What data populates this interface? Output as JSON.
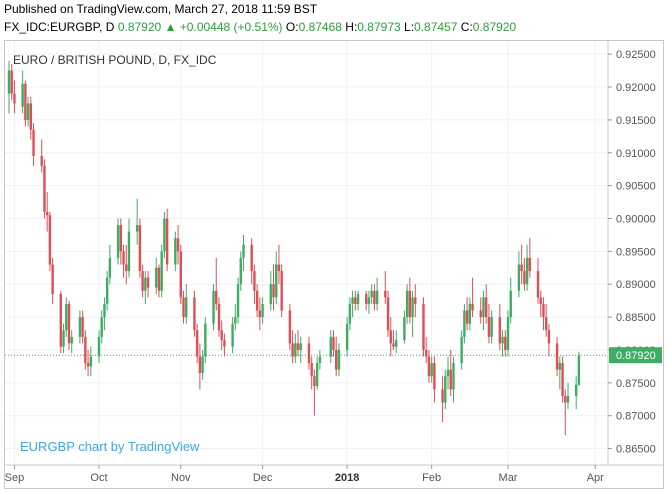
{
  "published": "Published on TradingView.com, March 27, 2018 11:59 BST",
  "header": {
    "symbol": "FX_IDC:EURGBP, D",
    "last": "0.87920",
    "arrow": "▲",
    "change": "+0.00448 (+0.51%)",
    "o_label": "O:",
    "o_value": "0.87468",
    "h_label": "H:",
    "h_value": "0.87973",
    "l_label": "L:",
    "l_value": "0.87457",
    "c_label": "C:",
    "c_value": "0.87920"
  },
  "watermark": "EURGBP chart by TradingView",
  "colors": {
    "up": "#3ead63",
    "down": "#e04e55",
    "price_label": "#3ead63",
    "grid": "#eef1f6"
  },
  "chart_data": {
    "type": "candlestick",
    "title": "EURO / BRITISH POUND, D, FX_IDC",
    "xlabel": "",
    "ylabel": "",
    "ylim": [
      0.8625,
      0.927
    ],
    "grid": true,
    "last_price": "0.87920",
    "y_ticks": [
      "0.92500",
      "0.92000",
      "0.91500",
      "0.91000",
      "0.90500",
      "0.90000",
      "0.89500",
      "0.89000",
      "0.88500",
      "0.88000",
      "0.87500",
      "0.87000",
      "0.86500"
    ],
    "x_ticks": [
      {
        "label": "Sep",
        "date": "2017-09-01"
      },
      {
        "label": "Oct",
        "date": "2017-10-02"
      },
      {
        "label": "Nov",
        "date": "2017-11-01"
      },
      {
        "label": "Dec",
        "date": "2017-12-01"
      },
      {
        "label": "2018",
        "date": "2018-01-01",
        "bold": true
      },
      {
        "label": "Feb",
        "date": "2018-02-01"
      },
      {
        "label": "Mar",
        "date": "2018-03-01"
      },
      {
        "label": "Apr",
        "date": "2018-04-02"
      }
    ],
    "candles": [
      {
        "d": "2017-08-30",
        "o": 0.919,
        "h": 0.924,
        "l": 0.916,
        "c": 0.9225
      },
      {
        "d": "2017-08-31",
        "o": 0.9225,
        "h": 0.9235,
        "l": 0.918,
        "c": 0.919
      },
      {
        "d": "2017-09-01",
        "o": 0.919,
        "h": 0.921,
        "l": 0.916,
        "c": 0.9175
      },
      {
        "d": "2017-09-04",
        "o": 0.917,
        "h": 0.9225,
        "l": 0.916,
        "c": 0.9205
      },
      {
        "d": "2017-09-05",
        "o": 0.9205,
        "h": 0.921,
        "l": 0.914,
        "c": 0.915
      },
      {
        "d": "2017-09-06",
        "o": 0.915,
        "h": 0.9185,
        "l": 0.914,
        "c": 0.9175
      },
      {
        "d": "2017-09-07",
        "o": 0.9175,
        "h": 0.9185,
        "l": 0.912,
        "c": 0.9135
      },
      {
        "d": "2017-09-08",
        "o": 0.9135,
        "h": 0.9145,
        "l": 0.908,
        "c": 0.9095
      },
      {
        "d": "2017-09-11",
        "o": 0.9095,
        "h": 0.912,
        "l": 0.907,
        "c": 0.908
      },
      {
        "d": "2017-09-12",
        "o": 0.908,
        "h": 0.909,
        "l": 0.9,
        "c": 0.901
      },
      {
        "d": "2017-09-13",
        "o": 0.901,
        "h": 0.904,
        "l": 0.898,
        "c": 0.9005
      },
      {
        "d": "2017-09-14",
        "o": 0.9005,
        "h": 0.901,
        "l": 0.892,
        "c": 0.893
      },
      {
        "d": "2017-09-15",
        "o": 0.893,
        "h": 0.894,
        "l": 0.887,
        "c": 0.8885
      },
      {
        "d": "2017-09-18",
        "o": 0.8885,
        "h": 0.889,
        "l": 0.8795,
        "c": 0.8805
      },
      {
        "d": "2017-09-19",
        "o": 0.8805,
        "h": 0.884,
        "l": 0.8795,
        "c": 0.883
      },
      {
        "d": "2017-09-20",
        "o": 0.883,
        "h": 0.888,
        "l": 0.882,
        "c": 0.887
      },
      {
        "d": "2017-09-21",
        "o": 0.887,
        "h": 0.8875,
        "l": 0.88,
        "c": 0.881
      },
      {
        "d": "2017-09-22",
        "o": 0.881,
        "h": 0.883,
        "l": 0.8795,
        "c": 0.882
      },
      {
        "d": "2017-09-25",
        "o": 0.882,
        "h": 0.886,
        "l": 0.881,
        "c": 0.885
      },
      {
        "d": "2017-09-26",
        "o": 0.885,
        "h": 0.886,
        "l": 0.881,
        "c": 0.882
      },
      {
        "d": "2017-09-27",
        "o": 0.882,
        "h": 0.883,
        "l": 0.877,
        "c": 0.878
      },
      {
        "d": "2017-09-28",
        "o": 0.878,
        "h": 0.88,
        "l": 0.876,
        "c": 0.8775
      },
      {
        "d": "2017-09-29",
        "o": 0.8775,
        "h": 0.8805,
        "l": 0.876,
        "c": 0.879
      },
      {
        "d": "2017-10-02",
        "o": 0.879,
        "h": 0.883,
        "l": 0.878,
        "c": 0.882
      },
      {
        "d": "2017-10-03",
        "o": 0.882,
        "h": 0.886,
        "l": 0.881,
        "c": 0.885
      },
      {
        "d": "2017-10-04",
        "o": 0.885,
        "h": 0.888,
        "l": 0.883,
        "c": 0.887
      },
      {
        "d": "2017-10-05",
        "o": 0.887,
        "h": 0.892,
        "l": 0.886,
        "c": 0.891
      },
      {
        "d": "2017-10-06",
        "o": 0.891,
        "h": 0.896,
        "l": 0.89,
        "c": 0.894
      },
      {
        "d": "2017-10-09",
        "o": 0.894,
        "h": 0.9,
        "l": 0.893,
        "c": 0.899
      },
      {
        "d": "2017-10-10",
        "o": 0.899,
        "h": 0.9,
        "l": 0.893,
        "c": 0.895
      },
      {
        "d": "2017-10-11",
        "o": 0.895,
        "h": 0.896,
        "l": 0.891,
        "c": 0.893
      },
      {
        "d": "2017-10-12",
        "o": 0.893,
        "h": 0.896,
        "l": 0.89,
        "c": 0.892
      },
      {
        "d": "2017-10-13",
        "o": 0.892,
        "h": 0.9,
        "l": 0.891,
        "c": 0.898
      },
      {
        "d": "2017-10-16",
        "o": 0.898,
        "h": 0.903,
        "l": 0.896,
        "c": 0.899
      },
      {
        "d": "2017-10-17",
        "o": 0.899,
        "h": 0.9,
        "l": 0.891,
        "c": 0.892
      },
      {
        "d": "2017-10-18",
        "o": 0.892,
        "h": 0.893,
        "l": 0.888,
        "c": 0.889
      },
      {
        "d": "2017-10-19",
        "o": 0.889,
        "h": 0.892,
        "l": 0.887,
        "c": 0.891
      },
      {
        "d": "2017-10-20",
        "o": 0.891,
        "h": 0.892,
        "l": 0.888,
        "c": 0.8895
      },
      {
        "d": "2017-10-23",
        "o": 0.8895,
        "h": 0.894,
        "l": 0.8885,
        "c": 0.8925
      },
      {
        "d": "2017-10-24",
        "o": 0.8925,
        "h": 0.893,
        "l": 0.888,
        "c": 0.889
      },
      {
        "d": "2017-10-25",
        "o": 0.889,
        "h": 0.896,
        "l": 0.888,
        "c": 0.895
      },
      {
        "d": "2017-10-26",
        "o": 0.895,
        "h": 0.901,
        "l": 0.894,
        "c": 0.9
      },
      {
        "d": "2017-10-27",
        "o": 0.9,
        "h": 0.9015,
        "l": 0.892,
        "c": 0.893
      },
      {
        "d": "2017-10-30",
        "o": 0.893,
        "h": 0.898,
        "l": 0.892,
        "c": 0.897
      },
      {
        "d": "2017-10-31",
        "o": 0.897,
        "h": 0.899,
        "l": 0.893,
        "c": 0.895
      },
      {
        "d": "2017-11-01",
        "o": 0.895,
        "h": 0.896,
        "l": 0.887,
        "c": 0.888
      },
      {
        "d": "2017-11-02",
        "o": 0.888,
        "h": 0.889,
        "l": 0.884,
        "c": 0.885
      },
      {
        "d": "2017-11-03",
        "o": 0.885,
        "h": 0.89,
        "l": 0.884,
        "c": 0.888
      },
      {
        "d": "2017-11-06",
        "o": 0.888,
        "h": 0.889,
        "l": 0.882,
        "c": 0.883
      },
      {
        "d": "2017-11-07",
        "o": 0.883,
        "h": 0.884,
        "l": 0.878,
        "c": 0.879
      },
      {
        "d": "2017-11-08",
        "o": 0.879,
        "h": 0.881,
        "l": 0.874,
        "c": 0.8765
      },
      {
        "d": "2017-11-09",
        "o": 0.8765,
        "h": 0.88,
        "l": 0.8755,
        "c": 0.879
      },
      {
        "d": "2017-11-10",
        "o": 0.879,
        "h": 0.885,
        "l": 0.878,
        "c": 0.884
      },
      {
        "d": "2017-11-13",
        "o": 0.884,
        "h": 0.89,
        "l": 0.883,
        "c": 0.889
      },
      {
        "d": "2017-11-14",
        "o": 0.889,
        "h": 0.894,
        "l": 0.886,
        "c": 0.887
      },
      {
        "d": "2017-11-15",
        "o": 0.887,
        "h": 0.888,
        "l": 0.882,
        "c": 0.883
      },
      {
        "d": "2017-11-16",
        "o": 0.883,
        "h": 0.8845,
        "l": 0.88,
        "c": 0.8815
      },
      {
        "d": "2017-11-17",
        "o": 0.8815,
        "h": 0.8825,
        "l": 0.879,
        "c": 0.8805
      },
      {
        "d": "2017-11-20",
        "o": 0.8805,
        "h": 0.885,
        "l": 0.8795,
        "c": 0.884
      },
      {
        "d": "2017-11-21",
        "o": 0.884,
        "h": 0.887,
        "l": 0.883,
        "c": 0.885
      },
      {
        "d": "2017-11-22",
        "o": 0.885,
        "h": 0.891,
        "l": 0.884,
        "c": 0.89
      },
      {
        "d": "2017-11-23",
        "o": 0.89,
        "h": 0.895,
        "l": 0.889,
        "c": 0.894
      },
      {
        "d": "2017-11-24",
        "o": 0.894,
        "h": 0.8975,
        "l": 0.892,
        "c": 0.896
      },
      {
        "d": "2017-11-27",
        "o": 0.896,
        "h": 0.897,
        "l": 0.89,
        "c": 0.892
      },
      {
        "d": "2017-11-28",
        "o": 0.892,
        "h": 0.893,
        "l": 0.887,
        "c": 0.889
      },
      {
        "d": "2017-11-29",
        "o": 0.889,
        "h": 0.89,
        "l": 0.885,
        "c": 0.886
      },
      {
        "d": "2017-11-30",
        "o": 0.886,
        "h": 0.888,
        "l": 0.883,
        "c": 0.885
      },
      {
        "d": "2017-12-01",
        "o": 0.885,
        "h": 0.888,
        "l": 0.884,
        "c": 0.887
      },
      {
        "d": "2017-12-04",
        "o": 0.887,
        "h": 0.892,
        "l": 0.886,
        "c": 0.89
      },
      {
        "d": "2017-12-05",
        "o": 0.89,
        "h": 0.893,
        "l": 0.886,
        "c": 0.888
      },
      {
        "d": "2017-12-06",
        "o": 0.888,
        "h": 0.895,
        "l": 0.887,
        "c": 0.893
      },
      {
        "d": "2017-12-07",
        "o": 0.893,
        "h": 0.896,
        "l": 0.89,
        "c": 0.892
      },
      {
        "d": "2017-12-08",
        "o": 0.892,
        "h": 0.893,
        "l": 0.885,
        "c": 0.886
      },
      {
        "d": "2017-12-11",
        "o": 0.886,
        "h": 0.887,
        "l": 0.88,
        "c": 0.881
      },
      {
        "d": "2017-12-12",
        "o": 0.881,
        "h": 0.883,
        "l": 0.878,
        "c": 0.879
      },
      {
        "d": "2017-12-13",
        "o": 0.879,
        "h": 0.8825,
        "l": 0.878,
        "c": 0.881
      },
      {
        "d": "2017-12-14",
        "o": 0.881,
        "h": 0.883,
        "l": 0.879,
        "c": 0.88
      },
      {
        "d": "2017-12-15",
        "o": 0.88,
        "h": 0.882,
        "l": 0.878,
        "c": 0.881
      },
      {
        "d": "2017-12-18",
        "o": 0.881,
        "h": 0.882,
        "l": 0.877,
        "c": 0.878
      },
      {
        "d": "2017-12-19",
        "o": 0.878,
        "h": 0.879,
        "l": 0.874,
        "c": 0.876
      },
      {
        "d": "2017-12-20",
        "o": 0.876,
        "h": 0.877,
        "l": 0.87,
        "c": 0.8745
      },
      {
        "d": "2017-12-21",
        "o": 0.8745,
        "h": 0.879,
        "l": 0.874,
        "c": 0.878
      },
      {
        "d": "2017-12-22",
        "o": 0.878,
        "h": 0.88,
        "l": 0.877,
        "c": 0.879
      },
      {
        "d": "2017-12-26",
        "o": 0.879,
        "h": 0.883,
        "l": 0.878,
        "c": 0.882
      },
      {
        "d": "2017-12-27",
        "o": 0.882,
        "h": 0.883,
        "l": 0.879,
        "c": 0.88
      },
      {
        "d": "2017-12-28",
        "o": 0.88,
        "h": 0.882,
        "l": 0.876,
        "c": 0.877
      },
      {
        "d": "2017-12-29",
        "o": 0.877,
        "h": 0.881,
        "l": 0.876,
        "c": 0.88
      },
      {
        "d": "2018-01-01",
        "o": 0.88,
        "h": 0.885,
        "l": 0.879,
        "c": 0.884
      },
      {
        "d": "2018-01-02",
        "o": 0.884,
        "h": 0.888,
        "l": 0.883,
        "c": 0.887
      },
      {
        "d": "2018-01-03",
        "o": 0.887,
        "h": 0.889,
        "l": 0.885,
        "c": 0.888
      },
      {
        "d": "2018-01-04",
        "o": 0.888,
        "h": 0.889,
        "l": 0.886,
        "c": 0.887
      },
      {
        "d": "2018-01-05",
        "o": 0.887,
        "h": 0.889,
        "l": 0.886,
        "c": 0.8885
      },
      {
        "d": "2018-01-08",
        "o": 0.8885,
        "h": 0.889,
        "l": 0.886,
        "c": 0.887
      },
      {
        "d": "2018-01-09",
        "o": 0.887,
        "h": 0.889,
        "l": 0.8855,
        "c": 0.888
      },
      {
        "d": "2018-01-10",
        "o": 0.888,
        "h": 0.89,
        "l": 0.887,
        "c": 0.889
      },
      {
        "d": "2018-01-11",
        "o": 0.889,
        "h": 0.89,
        "l": 0.886,
        "c": 0.887
      },
      {
        "d": "2018-01-12",
        "o": 0.887,
        "h": 0.891,
        "l": 0.886,
        "c": 0.889
      },
      {
        "d": "2018-01-15",
        "o": 0.889,
        "h": 0.892,
        "l": 0.887,
        "c": 0.888
      },
      {
        "d": "2018-01-16",
        "o": 0.888,
        "h": 0.889,
        "l": 0.882,
        "c": 0.883
      },
      {
        "d": "2018-01-17",
        "o": 0.883,
        "h": 0.885,
        "l": 0.879,
        "c": 0.881
      },
      {
        "d": "2018-01-18",
        "o": 0.881,
        "h": 0.883,
        "l": 0.88,
        "c": 0.8805
      },
      {
        "d": "2018-01-19",
        "o": 0.8805,
        "h": 0.883,
        "l": 0.8795,
        "c": 0.8815
      },
      {
        "d": "2018-01-22",
        "o": 0.8815,
        "h": 0.886,
        "l": 0.881,
        "c": 0.885
      },
      {
        "d": "2018-01-23",
        "o": 0.885,
        "h": 0.89,
        "l": 0.884,
        "c": 0.889
      },
      {
        "d": "2018-01-24",
        "o": 0.889,
        "h": 0.891,
        "l": 0.884,
        "c": 0.885
      },
      {
        "d": "2018-01-25",
        "o": 0.885,
        "h": 0.889,
        "l": 0.882,
        "c": 0.888
      },
      {
        "d": "2018-01-26",
        "o": 0.888,
        "h": 0.89,
        "l": 0.885,
        "c": 0.887
      },
      {
        "d": "2018-01-29",
        "o": 0.887,
        "h": 0.888,
        "l": 0.879,
        "c": 0.88
      },
      {
        "d": "2018-01-30",
        "o": 0.88,
        "h": 0.882,
        "l": 0.878,
        "c": 0.879
      },
      {
        "d": "2018-01-31",
        "o": 0.879,
        "h": 0.88,
        "l": 0.875,
        "c": 0.876
      },
      {
        "d": "2018-02-01",
        "o": 0.876,
        "h": 0.879,
        "l": 0.875,
        "c": 0.878
      },
      {
        "d": "2018-02-02",
        "o": 0.878,
        "h": 0.879,
        "l": 0.872,
        "c": 0.874
      },
      {
        "d": "2018-02-05",
        "o": 0.874,
        "h": 0.876,
        "l": 0.869,
        "c": 0.872
      },
      {
        "d": "2018-02-06",
        "o": 0.872,
        "h": 0.877,
        "l": 0.871,
        "c": 0.876
      },
      {
        "d": "2018-02-07",
        "o": 0.876,
        "h": 0.879,
        "l": 0.874,
        "c": 0.877
      },
      {
        "d": "2018-02-08",
        "o": 0.877,
        "h": 0.88,
        "l": 0.873,
        "c": 0.874
      },
      {
        "d": "2018-02-09",
        "o": 0.874,
        "h": 0.879,
        "l": 0.872,
        "c": 0.878
      },
      {
        "d": "2018-02-12",
        "o": 0.878,
        "h": 0.883,
        "l": 0.877,
        "c": 0.882
      },
      {
        "d": "2018-02-13",
        "o": 0.882,
        "h": 0.887,
        "l": 0.881,
        "c": 0.886
      },
      {
        "d": "2018-02-14",
        "o": 0.886,
        "h": 0.888,
        "l": 0.883,
        "c": 0.884
      },
      {
        "d": "2018-02-15",
        "o": 0.884,
        "h": 0.888,
        "l": 0.883,
        "c": 0.887
      },
      {
        "d": "2018-02-16",
        "o": 0.887,
        "h": 0.891,
        "l": 0.885,
        "c": 0.886
      },
      {
        "d": "2018-02-19",
        "o": 0.886,
        "h": 0.888,
        "l": 0.884,
        "c": 0.885
      },
      {
        "d": "2018-02-20",
        "o": 0.885,
        "h": 0.889,
        "l": 0.883,
        "c": 0.888
      },
      {
        "d": "2018-02-21",
        "o": 0.888,
        "h": 0.89,
        "l": 0.884,
        "c": 0.885
      },
      {
        "d": "2018-02-22",
        "o": 0.885,
        "h": 0.887,
        "l": 0.881,
        "c": 0.882
      },
      {
        "d": "2018-02-23",
        "o": 0.882,
        "h": 0.886,
        "l": 0.881,
        "c": 0.885
      },
      {
        "d": "2018-02-26",
        "o": 0.885,
        "h": 0.887,
        "l": 0.88,
        "c": 0.881
      },
      {
        "d": "2018-02-27",
        "o": 0.881,
        "h": 0.883,
        "l": 0.879,
        "c": 0.882
      },
      {
        "d": "2018-02-28",
        "o": 0.882,
        "h": 0.883,
        "l": 0.879,
        "c": 0.88
      },
      {
        "d": "2018-03-01",
        "o": 0.88,
        "h": 0.886,
        "l": 0.879,
        "c": 0.885
      },
      {
        "d": "2018-03-02",
        "o": 0.885,
        "h": 0.891,
        "l": 0.884,
        "c": 0.889
      },
      {
        "d": "2018-03-05",
        "o": 0.889,
        "h": 0.895,
        "l": 0.888,
        "c": 0.893
      },
      {
        "d": "2018-03-06",
        "o": 0.893,
        "h": 0.896,
        "l": 0.89,
        "c": 0.892
      },
      {
        "d": "2018-03-07",
        "o": 0.892,
        "h": 0.894,
        "l": 0.889,
        "c": 0.89
      },
      {
        "d": "2018-03-08",
        "o": 0.89,
        "h": 0.896,
        "l": 0.889,
        "c": 0.894
      },
      {
        "d": "2018-03-09",
        "o": 0.894,
        "h": 0.897,
        "l": 0.891,
        "c": 0.892
      },
      {
        "d": "2018-03-12",
        "o": 0.892,
        "h": 0.894,
        "l": 0.887,
        "c": 0.888
      },
      {
        "d": "2018-03-13",
        "o": 0.888,
        "h": 0.889,
        "l": 0.885,
        "c": 0.887
      },
      {
        "d": "2018-03-14",
        "o": 0.887,
        "h": 0.888,
        "l": 0.883,
        "c": 0.885
      },
      {
        "d": "2018-03-15",
        "o": 0.885,
        "h": 0.887,
        "l": 0.882,
        "c": 0.883
      },
      {
        "d": "2018-03-16",
        "o": 0.883,
        "h": 0.884,
        "l": 0.879,
        "c": 0.881
      },
      {
        "d": "2018-03-19",
        "o": 0.881,
        "h": 0.882,
        "l": 0.876,
        "c": 0.877
      },
      {
        "d": "2018-03-20",
        "o": 0.877,
        "h": 0.879,
        "l": 0.874,
        "c": 0.878
      },
      {
        "d": "2018-03-21",
        "o": 0.878,
        "h": 0.879,
        "l": 0.872,
        "c": 0.873
      },
      {
        "d": "2018-03-22",
        "o": 0.873,
        "h": 0.874,
        "l": 0.867,
        "c": 0.872
      },
      {
        "d": "2018-03-23",
        "o": 0.872,
        "h": 0.875,
        "l": 0.871,
        "c": 0.873
      },
      {
        "d": "2018-03-26",
        "o": 0.873,
        "h": 0.876,
        "l": 0.871,
        "c": 0.8747
      },
      {
        "d": "2018-03-27",
        "o": 0.87468,
        "h": 0.87973,
        "l": 0.87457,
        "c": 0.8792
      }
    ]
  }
}
